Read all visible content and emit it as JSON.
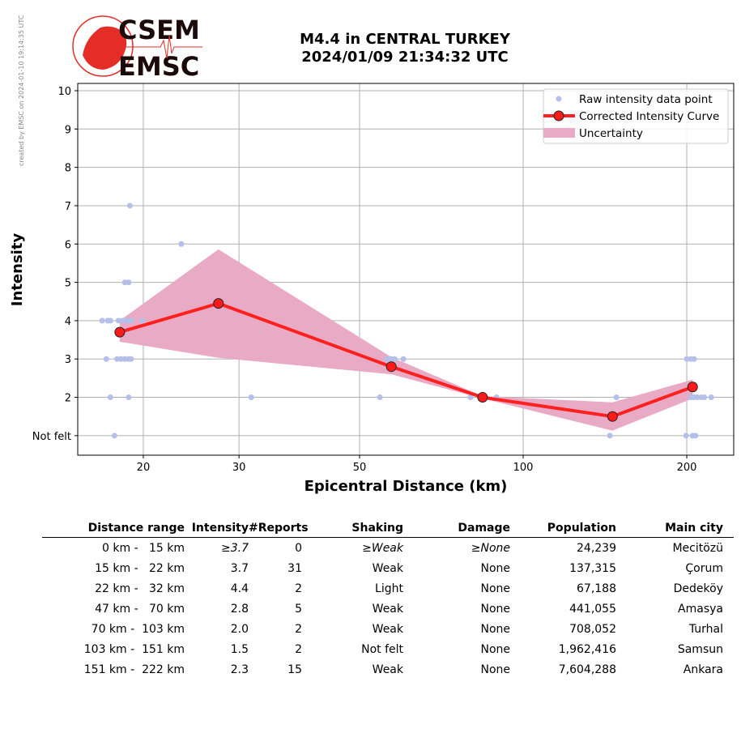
{
  "credit": "created by EMSC on 2024-01-10 19:14:35 UTC",
  "logo": {
    "top": "CSEM",
    "bottom": "EMSC"
  },
  "title": {
    "line1": "M4.4 in CENTRAL TURKEY",
    "line2": "2024/01/09 21:34:32 UTC"
  },
  "colors": {
    "raw": "#b4bfea",
    "curve": "#ff2020",
    "band": "#e8aac4",
    "grid": "#b0b0b0"
  },
  "chart_data": {
    "type": "line",
    "xlabel": "Epicentral Distance (km)",
    "ylabel": "Intensity",
    "xscale": "log",
    "xlim": [
      15.15,
      244
    ],
    "ylim": [
      0.49,
      10.19
    ],
    "x_ticks": [
      {
        "v": 20,
        "label": "20"
      },
      {
        "v": 30,
        "label": "30"
      },
      {
        "v": 50,
        "label": "50"
      },
      {
        "v": 100,
        "label": "100"
      },
      {
        "v": 200,
        "label": "200"
      }
    ],
    "y_ticks": [
      {
        "v": 1,
        "label": "Not felt"
      },
      {
        "v": 2,
        "label": "2"
      },
      {
        "v": 3,
        "label": "3"
      },
      {
        "v": 4,
        "label": "4"
      },
      {
        "v": 5,
        "label": "5"
      },
      {
        "v": 6,
        "label": "6"
      },
      {
        "v": 7,
        "label": "7"
      },
      {
        "v": 8,
        "label": "8"
      },
      {
        "v": 9,
        "label": "9"
      },
      {
        "v": 10,
        "label": "10"
      }
    ],
    "grid": true,
    "legend_position": "top-right",
    "legend": [
      "Raw intensity data point",
      "Corrected Intensity Curve",
      "Uncertainty"
    ],
    "raw_points": [
      [
        18.9,
        7
      ],
      [
        23.5,
        6
      ],
      [
        18.5,
        5
      ],
      [
        18.8,
        5
      ],
      [
        16.8,
        4
      ],
      [
        17.2,
        4
      ],
      [
        17.4,
        4
      ],
      [
        18.0,
        4
      ],
      [
        18.3,
        4
      ],
      [
        18.6,
        4
      ],
      [
        18.8,
        4
      ],
      [
        19.0,
        4
      ],
      [
        19.9,
        4
      ],
      [
        17.1,
        3
      ],
      [
        17.9,
        3
      ],
      [
        18.2,
        3
      ],
      [
        18.5,
        3
      ],
      [
        18.8,
        3
      ],
      [
        19.0,
        3
      ],
      [
        56.2,
        3
      ],
      [
        57.2,
        3
      ],
      [
        58.0,
        3
      ],
      [
        60.2,
        3
      ],
      [
        200,
        3
      ],
      [
        203.5,
        3
      ],
      [
        206.3,
        3
      ],
      [
        17.4,
        2
      ],
      [
        18.8,
        2
      ],
      [
        31.6,
        2
      ],
      [
        54.5,
        2
      ],
      [
        80.0,
        2
      ],
      [
        89.3,
        2
      ],
      [
        148.4,
        2
      ],
      [
        203.5,
        2
      ],
      [
        206.3,
        2
      ],
      [
        209.1,
        2
      ],
      [
        212.6,
        2
      ],
      [
        215.4,
        2
      ],
      [
        221.8,
        2
      ],
      [
        17.7,
        1
      ],
      [
        144.4,
        1
      ],
      [
        199.4,
        1
      ],
      [
        204.9,
        1
      ],
      [
        207.5,
        1
      ]
    ],
    "curve": {
      "x": [
        18.1,
        27.5,
        57.2,
        84.2,
        146,
        205
      ],
      "y": [
        3.7,
        4.45,
        2.8,
        2.0,
        1.5,
        2.27
      ]
    },
    "uncertainty": {
      "x": [
        18.1,
        27.5,
        57.2,
        84.2,
        146,
        205
      ],
      "upper": [
        4.0,
        5.86,
        3.05,
        2.03,
        1.87,
        2.46
      ],
      "lower": [
        3.45,
        3.03,
        2.6,
        1.97,
        1.13,
        1.97
      ]
    }
  },
  "table": {
    "headers": [
      "Distance range",
      "Intensity",
      "#Reports",
      "Shaking",
      "Damage",
      "Population",
      "Main city"
    ],
    "rows": [
      [
        "0 km -   15 km",
        "≥3.7",
        "0",
        "≥Weak",
        "≥None",
        "24,239",
        "Mecitözü"
      ],
      [
        "15 km -   22 km",
        "3.7",
        "31",
        "Weak",
        "None",
        "137,315",
        "Çorum"
      ],
      [
        "22 km -   32 km",
        "4.4",
        "2",
        "Light",
        "None",
        "67,188",
        "Dedeköy"
      ],
      [
        "47 km -   70 km",
        "2.8",
        "5",
        "Weak",
        "None",
        "441,055",
        "Amasya"
      ],
      [
        "70 km -  103 km",
        "2.0",
        "2",
        "Weak",
        "None",
        "708,052",
        "Turhal"
      ],
      [
        "103 km -  151 km",
        "1.5",
        "2",
        "Not felt",
        "None",
        "1,962,416",
        "Samsun"
      ],
      [
        "151 km -  222 km",
        "2.3",
        "15",
        "Weak",
        "None",
        "7,604,288",
        "Ankara"
      ]
    ]
  }
}
